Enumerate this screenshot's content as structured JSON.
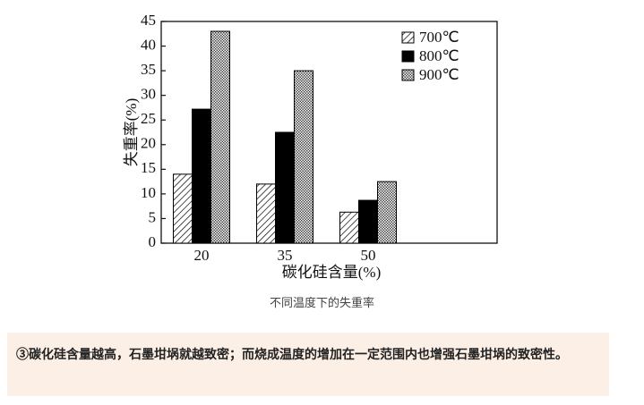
{
  "chart_data": {
    "type": "bar",
    "y_label": "失重率(%)",
    "x_label": "碳化硅含量(%)",
    "categories": [
      "20",
      "35",
      "50"
    ],
    "series": [
      {
        "name": "700℃",
        "color": "#000000",
        "pattern": "hatch",
        "values": [
          14,
          12,
          6.3
        ]
      },
      {
        "name": "800℃",
        "color": "#000000",
        "pattern": "solid",
        "values": [
          27.2,
          22.5,
          8.7
        ]
      },
      {
        "name": "900℃",
        "color": "#000000",
        "pattern": "cross",
        "values": [
          43,
          35,
          12.5
        ]
      }
    ],
    "ylim": [
      0,
      45
    ],
    "yticks": [
      0,
      5,
      10,
      15,
      20,
      25,
      30,
      35,
      40,
      45
    ],
    "grid": false,
    "legend": "top-right"
  },
  "caption": "不同温度下的失重率",
  "note": "③碳化硅含量越高，石墨坩埚就越致密；而烧成温度的增加在一定范围内也增强石墨坩埚的致密性。"
}
